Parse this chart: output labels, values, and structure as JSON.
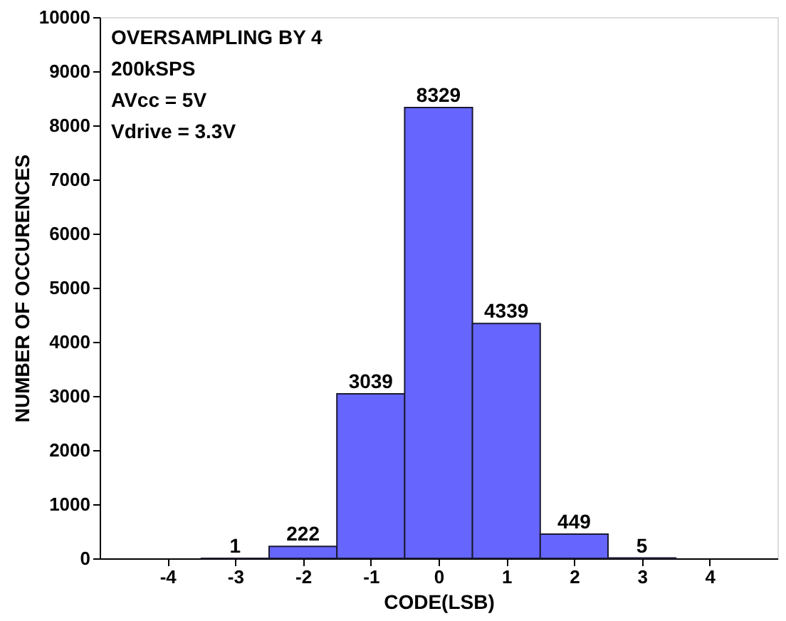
{
  "chart_data": {
    "type": "histogram",
    "bins": [
      -3.5,
      -2.5,
      -1.5,
      -0.5,
      0.5,
      1.5,
      2.5,
      3.5
    ],
    "values": [
      1,
      222,
      3039,
      8329,
      4339,
      449,
      5
    ],
    "color": "#6666ff",
    "xlabel": "CODE(LSB)",
    "ylabel": "NUMBER OF OCCURENCES",
    "xlim": [
      -5,
      5
    ],
    "xticks": [
      -4,
      -3,
      -2,
      -1,
      0,
      1,
      2,
      3,
      4
    ],
    "ylim": [
      0,
      10000
    ],
    "yticks": [
      0,
      1000,
      2000,
      3000,
      4000,
      5000,
      6000,
      7000,
      8000,
      9000,
      10000
    ],
    "data_labels": true,
    "grid": false,
    "annotations": [
      "OVERSAMPLING BY 4",
      "200kSPS",
      "AVcc = 5V",
      "Vdrive = 3.3V"
    ]
  }
}
